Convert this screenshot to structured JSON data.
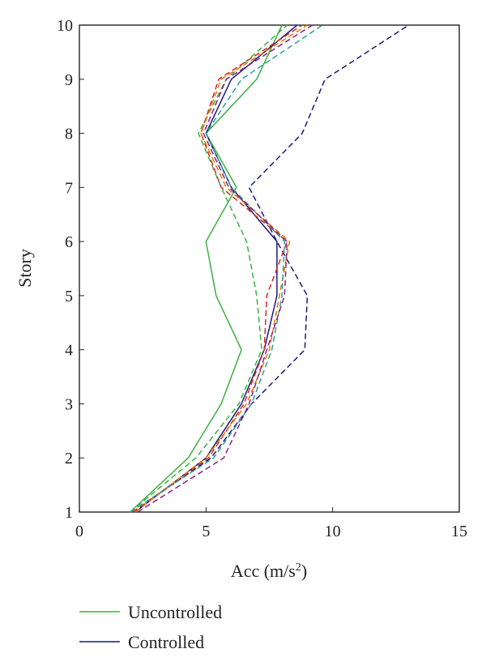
{
  "chart_data": {
    "type": "line",
    "title": "",
    "xlabel": "Acc (m/s",
    "xlabel_sup": "2",
    "xlabel_close": ")",
    "ylabel": "Story",
    "xlim": [
      0,
      15
    ],
    "ylim": [
      1,
      10
    ],
    "xticks": [
      0,
      5,
      10,
      15
    ],
    "yticks": [
      1,
      2,
      3,
      4,
      5,
      6,
      7,
      8,
      9,
      10
    ],
    "grid": false,
    "legend": {
      "placement": "below",
      "entries": [
        {
          "label": "Uncontrolled",
          "color": "#3cb043"
        },
        {
          "label": "Controlled",
          "color": "#1a1a7a"
        }
      ]
    },
    "series": [
      {
        "color": "#3cb043",
        "dash": false,
        "x": [
          2.0,
          4.3,
          5.6,
          6.4,
          5.4,
          5.0,
          6.2,
          5.0,
          7.0,
          8.0
        ],
        "y": [
          1,
          2,
          3,
          4,
          5,
          6,
          7,
          8,
          9,
          10
        ]
      },
      {
        "color": "#1a1a7a",
        "dash": false,
        "x": [
          2.2,
          5.0,
          6.4,
          7.3,
          7.8,
          7.8,
          6.0,
          5.0,
          6.0,
          8.6
        ],
        "y": [
          1,
          2,
          3,
          4,
          5,
          6,
          7,
          8,
          9,
          10
        ]
      },
      {
        "color": "#1a1a7a",
        "dash": true,
        "x": [
          2.1,
          5.2,
          6.8,
          8.9,
          9.0,
          7.8,
          6.7,
          8.8,
          9.7,
          13.0
        ],
        "y": [
          1,
          2,
          3,
          4,
          5,
          6,
          7,
          8,
          9,
          10
        ]
      },
      {
        "color": "#3cb043",
        "dash": true,
        "x": [
          2.0,
          4.6,
          6.3,
          7.2,
          7.0,
          6.6,
          5.6,
          4.7,
          5.8,
          8.2
        ],
        "y": [
          1,
          2,
          3,
          4,
          5,
          6,
          7,
          8,
          9,
          10
        ]
      },
      {
        "color": "#d62728",
        "dash": true,
        "x": [
          2.1,
          5.1,
          6.5,
          7.3,
          7.4,
          8.2,
          5.6,
          4.8,
          5.5,
          8.8
        ],
        "y": [
          1,
          2,
          3,
          4,
          5,
          6,
          7,
          8,
          9,
          10
        ]
      },
      {
        "color": "#e07b00",
        "dash": true,
        "x": [
          2.2,
          5.0,
          6.6,
          7.5,
          7.9,
          8.3,
          5.8,
          4.8,
          5.6,
          9.0
        ],
        "y": [
          1,
          2,
          3,
          4,
          5,
          6,
          7,
          8,
          9,
          10
        ]
      },
      {
        "color": "#2aa198",
        "dash": true,
        "x": [
          2.0,
          5.3,
          6.8,
          7.6,
          8.0,
          8.1,
          6.0,
          5.0,
          6.4,
          9.6
        ],
        "y": [
          1,
          2,
          3,
          4,
          5,
          6,
          7,
          8,
          9,
          10
        ]
      },
      {
        "color": "#8e1e8e",
        "dash": true,
        "x": [
          2.3,
          5.7,
          6.7,
          7.4,
          8.1,
          8.2,
          5.9,
          4.9,
          5.8,
          9.2
        ],
        "y": [
          1,
          2,
          3,
          4,
          5,
          6,
          7,
          8,
          9,
          10
        ]
      }
    ]
  }
}
